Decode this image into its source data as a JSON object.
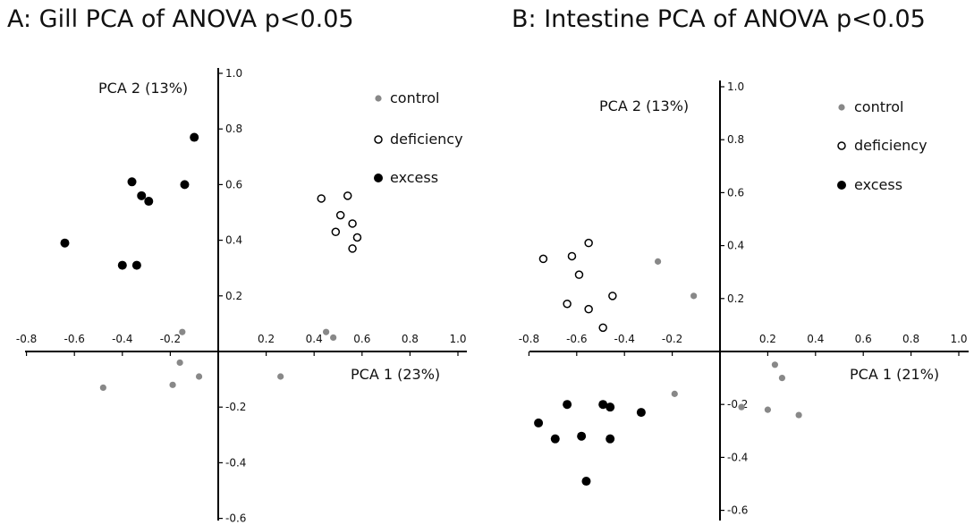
{
  "chart_data": [
    {
      "type": "scatter",
      "title": "A: Gill PCA of ANOVA p<0.05",
      "xlabel": "PCA 1 (23%)",
      "ylabel": "PCA 2 (13%)",
      "xlim": [
        -0.8,
        1.0
      ],
      "ylim": [
        -0.6,
        1.0
      ],
      "x_ticks": [
        "-0.8",
        "-0.6",
        "-0.4",
        "-0.2",
        "0.2",
        "0.4",
        "0.6",
        "0.8",
        "1.0"
      ],
      "y_ticks": [
        "1.0",
        "0.8",
        "0.6",
        "0.4",
        "0.2",
        "-0.2",
        "-0.4",
        "-0.6"
      ],
      "grid": false,
      "legend_position": "top-right",
      "colors": {
        "control": "#888888",
        "deficiency": "#000000",
        "excess": "#000000"
      },
      "series": [
        {
          "name": "control",
          "marker": "small grey dot",
          "points": [
            [
              -0.15,
              0.07
            ],
            [
              -0.48,
              -0.13
            ],
            [
              -0.16,
              -0.04
            ],
            [
              -0.19,
              -0.12
            ],
            [
              -0.08,
              -0.09
            ],
            [
              0.26,
              -0.09
            ],
            [
              0.45,
              0.07
            ],
            [
              0.48,
              0.05
            ]
          ]
        },
        {
          "name": "deficiency",
          "marker": "open circle",
          "points": [
            [
              0.43,
              0.55
            ],
            [
              0.54,
              0.56
            ],
            [
              0.51,
              0.49
            ],
            [
              0.56,
              0.46
            ],
            [
              0.49,
              0.43
            ],
            [
              0.58,
              0.41
            ],
            [
              0.56,
              0.37
            ]
          ]
        },
        {
          "name": "excess",
          "marker": "filled circle",
          "points": [
            [
              -0.1,
              0.77
            ],
            [
              -0.36,
              0.61
            ],
            [
              -0.14,
              0.6
            ],
            [
              -0.32,
              0.56
            ],
            [
              -0.29,
              0.54
            ],
            [
              -0.64,
              0.39
            ],
            [
              -0.4,
              0.31
            ],
            [
              -0.34,
              0.31
            ]
          ]
        }
      ]
    },
    {
      "type": "scatter",
      "title": "B: Intestine PCA of ANOVA p<0.05",
      "xlabel": "PCA 1 (21%)",
      "ylabel": "PCA 2 (13%)",
      "xlim": [
        -0.8,
        1.0
      ],
      "ylim": [
        -0.6,
        1.0
      ],
      "x_ticks": [
        "-0.8",
        "-0.6",
        "-0.4",
        "-0.2",
        "0.2",
        "0.4",
        "0.6",
        "0.8",
        "1.0"
      ],
      "y_ticks": [
        "1.0",
        "0.8",
        "0.6",
        "0.4",
        "0.2",
        "-0.2",
        "-0.4",
        "-0.6"
      ],
      "grid": false,
      "legend_position": "top-right",
      "colors": {
        "control": "#888888",
        "deficiency": "#000000",
        "excess": "#000000"
      },
      "series": [
        {
          "name": "control",
          "marker": "small grey dot",
          "points": [
            [
              -0.26,
              0.34
            ],
            [
              -0.11,
              0.21
            ],
            [
              -0.19,
              -0.16
            ],
            [
              0.23,
              -0.05
            ],
            [
              0.26,
              -0.1
            ],
            [
              0.09,
              -0.21
            ],
            [
              0.2,
              -0.22
            ],
            [
              0.33,
              -0.24
            ]
          ]
        },
        {
          "name": "deficiency",
          "marker": "open circle",
          "points": [
            [
              -0.55,
              0.41
            ],
            [
              -0.74,
              0.35
            ],
            [
              -0.62,
              0.36
            ],
            [
              -0.59,
              0.29
            ],
            [
              -0.64,
              0.18
            ],
            [
              -0.55,
              0.16
            ],
            [
              -0.45,
              0.21
            ],
            [
              -0.49,
              0.09
            ]
          ]
        },
        {
          "name": "excess",
          "marker": "filled circle",
          "points": [
            [
              -0.64,
              -0.2
            ],
            [
              -0.49,
              -0.2
            ],
            [
              -0.46,
              -0.21
            ],
            [
              -0.33,
              -0.23
            ],
            [
              -0.76,
              -0.27
            ],
            [
              -0.69,
              -0.33
            ],
            [
              -0.58,
              -0.32
            ],
            [
              -0.46,
              -0.33
            ],
            [
              -0.56,
              -0.49
            ]
          ]
        }
      ]
    }
  ]
}
